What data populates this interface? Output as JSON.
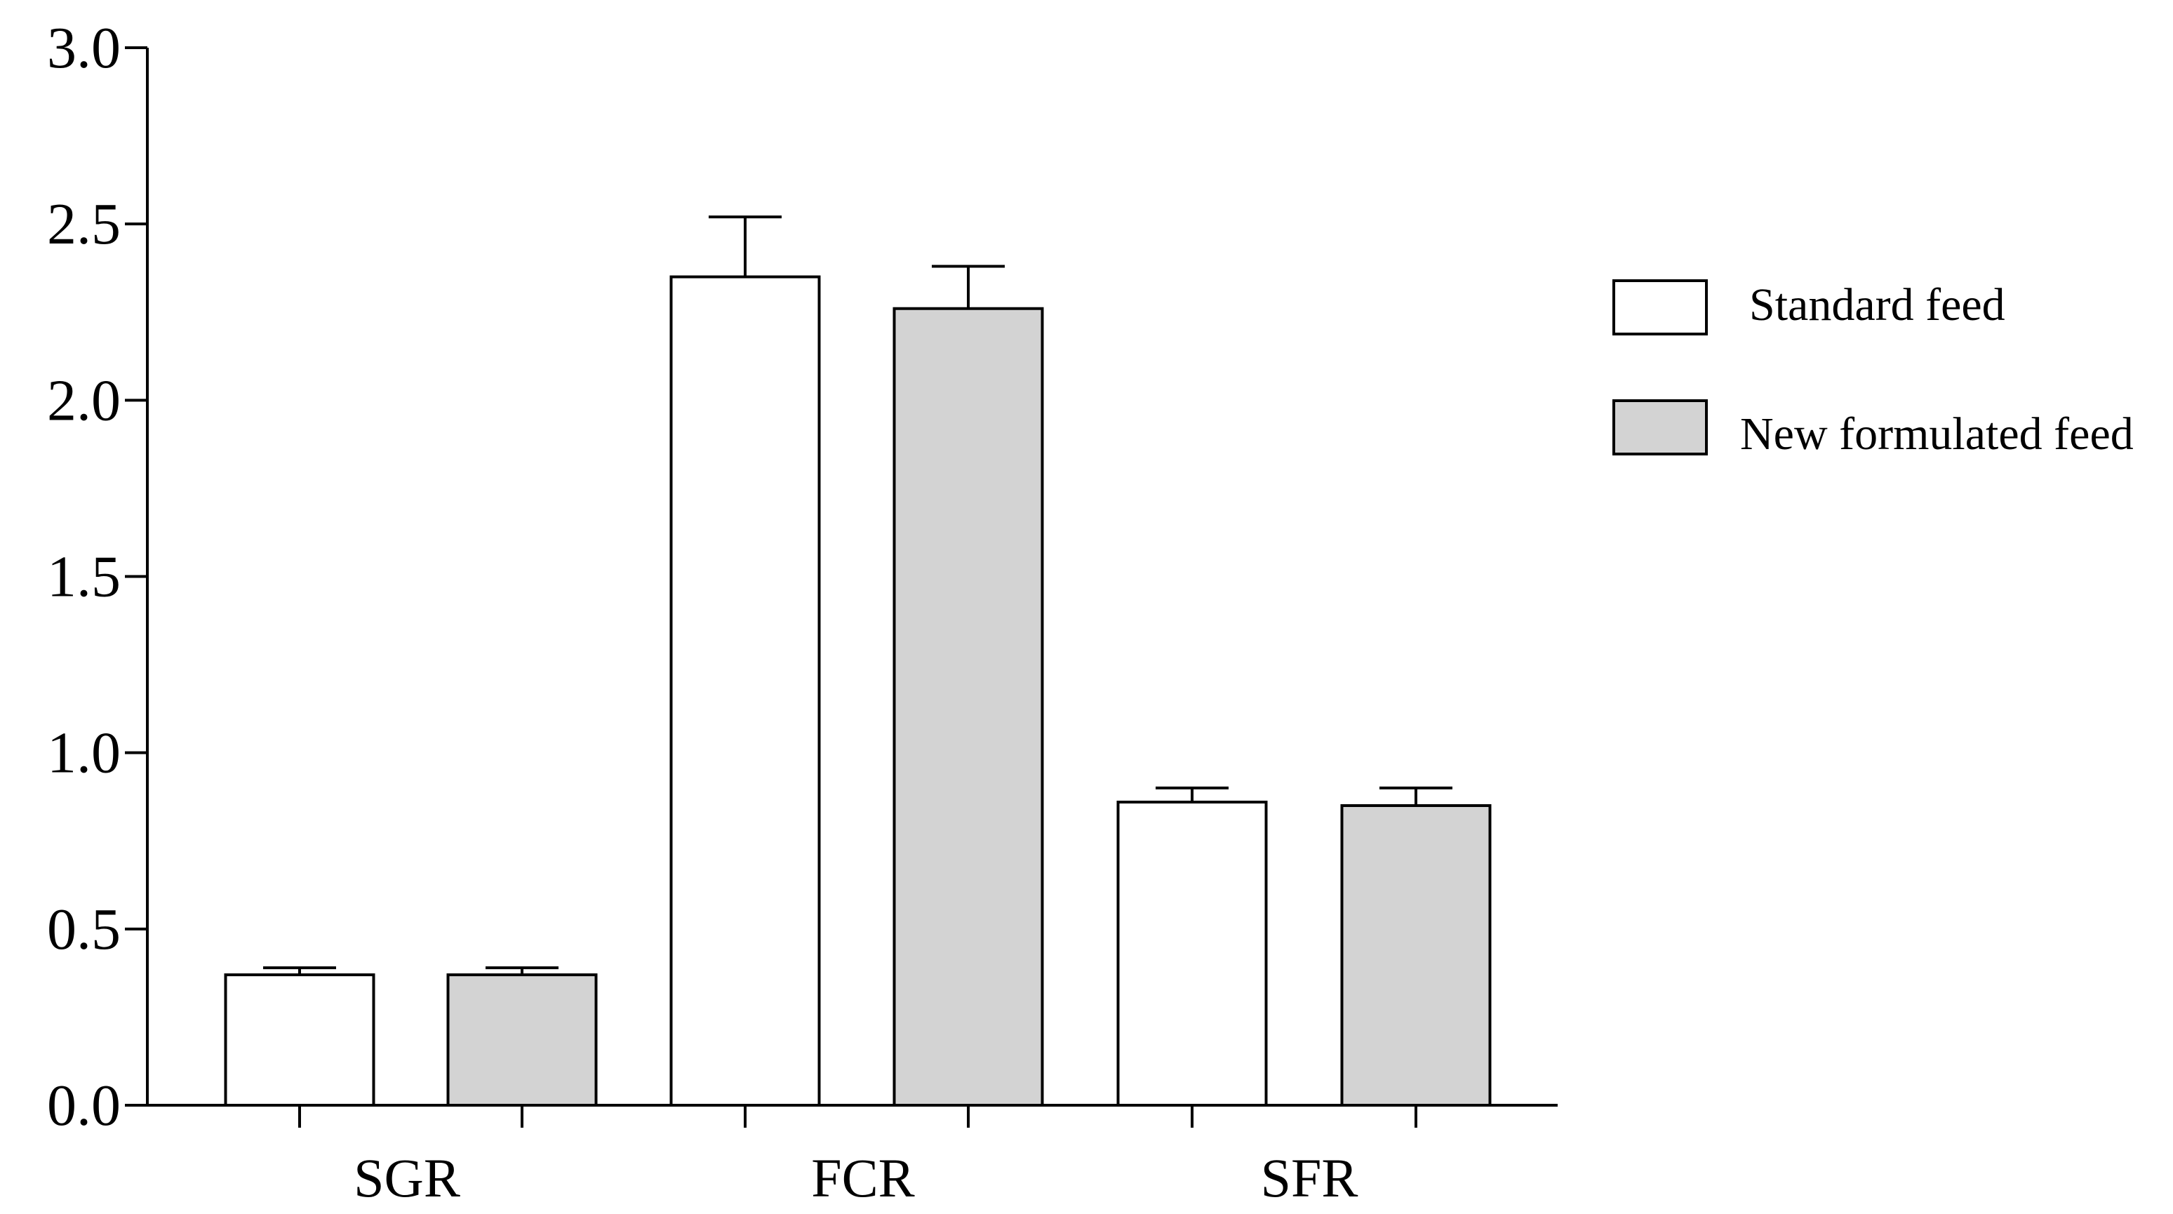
{
  "chart_data": {
    "type": "bar",
    "categories": [
      "SGR",
      "FCR",
      "SFR"
    ],
    "series": [
      {
        "name": "Standard feed",
        "color": "#ffffff",
        "values": [
          0.37,
          2.35,
          0.86
        ],
        "errors": [
          0.02,
          0.17,
          0.04
        ]
      },
      {
        "name": "New formulated feed",
        "color": "#d3d3d3",
        "values": [
          0.37,
          2.26,
          0.85
        ],
        "errors": [
          0.02,
          0.12,
          0.05
        ]
      }
    ],
    "ylim": [
      0,
      3.0
    ],
    "yticks": [
      "0.0",
      "0.5",
      "1.0",
      "1.5",
      "2.0",
      "2.5",
      "3.0"
    ],
    "title": "",
    "xlabel": "",
    "ylabel": "",
    "grid": false,
    "legend_position": "right"
  }
}
